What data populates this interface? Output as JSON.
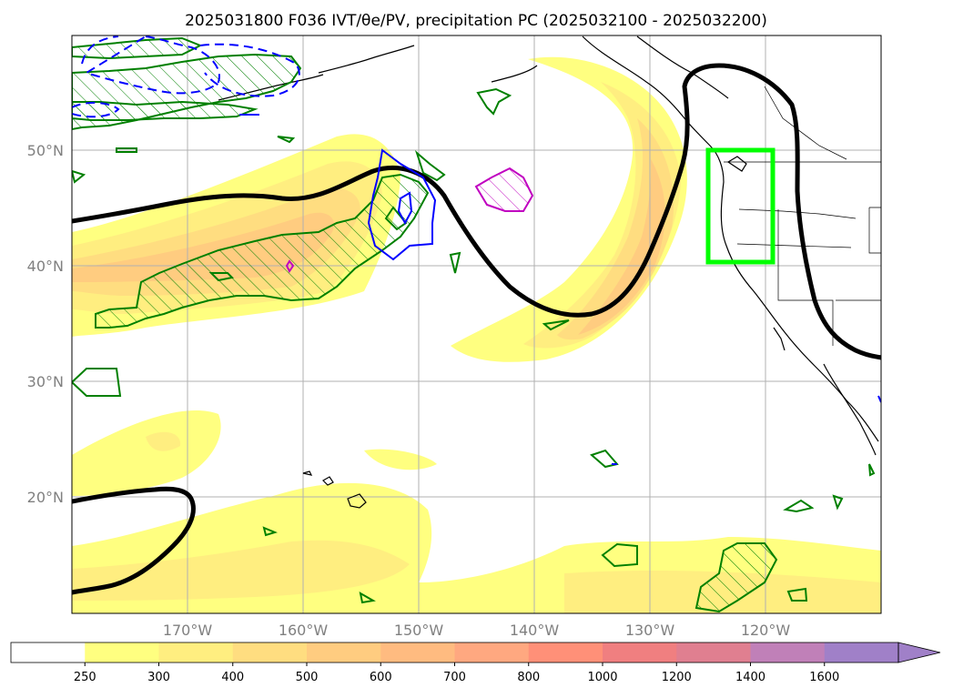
{
  "title": "2025031800 F036 IVT/θe/PV, precipitation PC (2025032100 - 2025032200)",
  "lon_labels": [
    "170°W",
    "160°W",
    "150°W",
    "140°W",
    "130°W",
    "120°W"
  ],
  "lat_labels": [
    "50°N",
    "40°N",
    "30°N",
    "20°N"
  ],
  "colorbar": {
    "levels": [
      "250",
      "300",
      "400",
      "500",
      "600",
      "700",
      "800",
      "1000",
      "1200",
      "1400",
      "1600"
    ],
    "colors": [
      "#ffffff",
      "#ffff80",
      "#ffee80",
      "#ffdd80",
      "#ffcc80",
      "#ffbb80",
      "#ffa880",
      "#ff9078",
      "#f07f80",
      "#e07f90",
      "#c080b8",
      "#a080c8"
    ]
  },
  "map_extent": {
    "lon_min": -180,
    "lon_max": -110,
    "lat_min": 10,
    "lat_max": 60
  },
  "colors": {
    "ivt_fill": "#ffee80",
    "theta_e_contour": "#000000",
    "pv_positive": "#008000",
    "pv_negative": "#0000ff",
    "precip_box": "#00ff00",
    "magenta_contour": "#c000c0"
  }
}
